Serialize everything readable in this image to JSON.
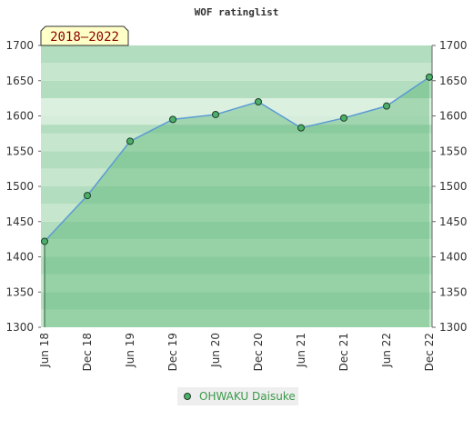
{
  "chart_data": {
    "type": "line",
    "title": "WOF ratinglist",
    "annotation": "2018–2022",
    "categories": [
      "Jun 18",
      "Dec 18",
      "Jun 19",
      "Dec 19",
      "Jun 20",
      "Dec 20",
      "Jun 21",
      "Dec 21",
      "Jun 22",
      "Dec 22"
    ],
    "series": [
      {
        "name": "OHWAKU Daisuke",
        "color": "#5b9bd5",
        "values": [
          1422,
          1487,
          1564,
          1595,
          1602,
          1620,
          1583,
          1597,
          1614,
          1655
        ]
      }
    ],
    "ylim": [
      1300,
      1700
    ],
    "yticks": [
      1300,
      1350,
      1400,
      1450,
      1500,
      1550,
      1600,
      1650,
      1700
    ],
    "y2lim": [
      1300,
      1700
    ],
    "y2ticks": [
      1300,
      1350,
      1400,
      1450,
      1500,
      1550,
      1600,
      1650,
      1700
    ]
  }
}
